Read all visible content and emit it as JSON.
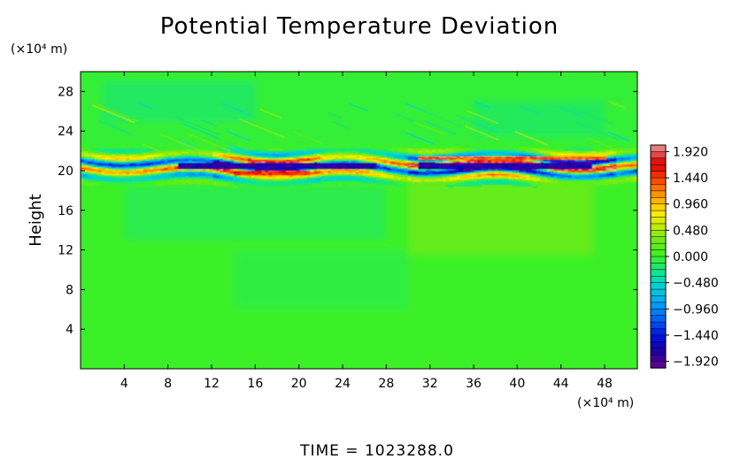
{
  "chart_data": {
    "type": "heatmap",
    "title": "Potential Temperature Deviation",
    "ylabel": "Height",
    "xlabel": "",
    "x_unit": "(×10⁴ m)",
    "y_unit": "(×10⁴ m)",
    "xlim": [
      0,
      51
    ],
    "ylim": [
      0,
      30
    ],
    "xticks": [
      "4",
      "8",
      "12",
      "16",
      "20",
      "24",
      "28",
      "32",
      "36",
      "40",
      "44",
      "48"
    ],
    "xtick_values": [
      4,
      8,
      12,
      16,
      20,
      24,
      28,
      32,
      36,
      40,
      44,
      48
    ],
    "yticks": [
      "4",
      "8",
      "12",
      "16",
      "20",
      "24",
      "28"
    ],
    "ytick_values": [
      4,
      8,
      12,
      16,
      20,
      24,
      28
    ],
    "colorbar": {
      "labels": [
        "1.920",
        "1.440",
        "0.960",
        "0.480",
        "0.000",
        "−0.480",
        "−0.960",
        "−1.440",
        "−1.920"
      ],
      "values": [
        1.92,
        1.44,
        0.96,
        0.48,
        0.0,
        -0.48,
        -0.96,
        -1.44,
        -1.92
      ],
      "range": [
        -2.04,
        2.04
      ],
      "levels": 34
    },
    "field_description": {
      "background_value": 0.0,
      "disturbance_band_height_range": [
        19.5,
        22.5
      ],
      "band_core_height": 20.5,
      "max_amplitude": 1.92
    }
  },
  "footer": {
    "time_label": "TIME  =  1023288.0"
  }
}
